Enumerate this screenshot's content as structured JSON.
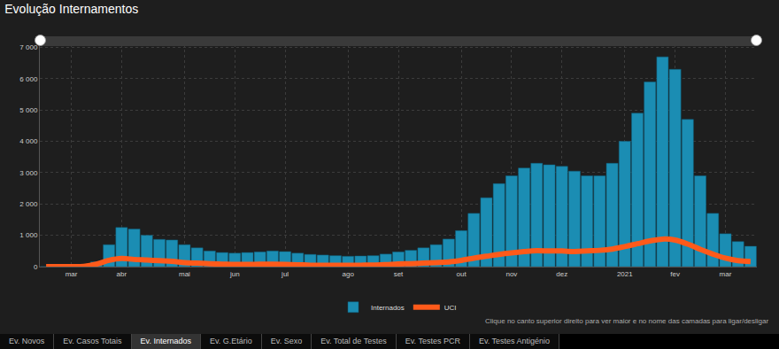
{
  "chart_data": {
    "type": "bar",
    "title": "Evolução Internamentos",
    "categories": [
      null,
      null,
      "mar",
      null,
      null,
      null,
      "abr",
      null,
      null,
      null,
      null,
      "mai",
      null,
      null,
      null,
      "jun",
      null,
      null,
      null,
      "jul",
      null,
      null,
      null,
      null,
      "ago",
      null,
      null,
      null,
      "set",
      null,
      null,
      null,
      null,
      "out",
      null,
      null,
      null,
      "nov",
      null,
      null,
      null,
      "dez",
      null,
      null,
      null,
      null,
      "2021",
      null,
      null,
      null,
      "fev",
      null,
      null,
      null,
      "mar",
      null,
      null
    ],
    "series": [
      {
        "name": "Internados",
        "type": "bar",
        "color": "#1b8db3",
        "values": [
          0,
          0,
          0,
          20,
          150,
          700,
          1250,
          1200,
          1000,
          870,
          850,
          700,
          600,
          500,
          450,
          430,
          450,
          470,
          500,
          480,
          430,
          390,
          370,
          350,
          330,
          340,
          350,
          400,
          470,
          520,
          600,
          700,
          880,
          1150,
          1700,
          2200,
          2650,
          2900,
          3150,
          3300,
          3250,
          3200,
          3050,
          2900,
          2900,
          3300,
          4000,
          4900,
          5900,
          6700,
          6300,
          4700,
          2900,
          1700,
          1050,
          800,
          650
        ]
      },
      {
        "name": "UCI",
        "type": "line",
        "color": "#ff5a1a",
        "line_style": "solid",
        "values": [
          0,
          0,
          0,
          10,
          80,
          200,
          260,
          230,
          210,
          190,
          170,
          130,
          110,
          90,
          80,
          70,
          70,
          75,
          75,
          70,
          60,
          45,
          40,
          40,
          40,
          45,
          50,
          65,
          85,
          95,
          110,
          130,
          150,
          200,
          270,
          330,
          390,
          440,
          480,
          510,
          500,
          500,
          480,
          500,
          520,
          560,
          640,
          730,
          820,
          880,
          850,
          720,
          550,
          400,
          270,
          190,
          160
        ]
      }
    ],
    "ylim": [
      0,
      7100
    ],
    "yticks": [
      0,
      {
        "value": 1000,
        "label": "1 000"
      },
      {
        "value": 2000,
        "label": "2 000"
      },
      {
        "value": 3000,
        "label": "3 000"
      },
      {
        "value": 4000,
        "label": "4 000"
      },
      {
        "value": 5000,
        "label": "5 000"
      },
      {
        "value": 6000,
        "label": "6 000"
      },
      {
        "value": 7000,
        "label": "7 000"
      }
    ],
    "grid": true,
    "legend": "bottom",
    "annotations": [
      "Clique no canto superior direito para ver maior e no nome das camadas para ligar/desligar"
    ]
  },
  "tabs": [
    "Ev. Novos",
    "Ev. Casos Totais",
    "Ev. Internados",
    "Ev. G.Etário",
    "Ev. Sexo",
    "Ev. Total de Testes",
    "Ev. Testes PCR",
    "Ev. Testes Antigénio"
  ],
  "active_tab": "Ev. Internados"
}
